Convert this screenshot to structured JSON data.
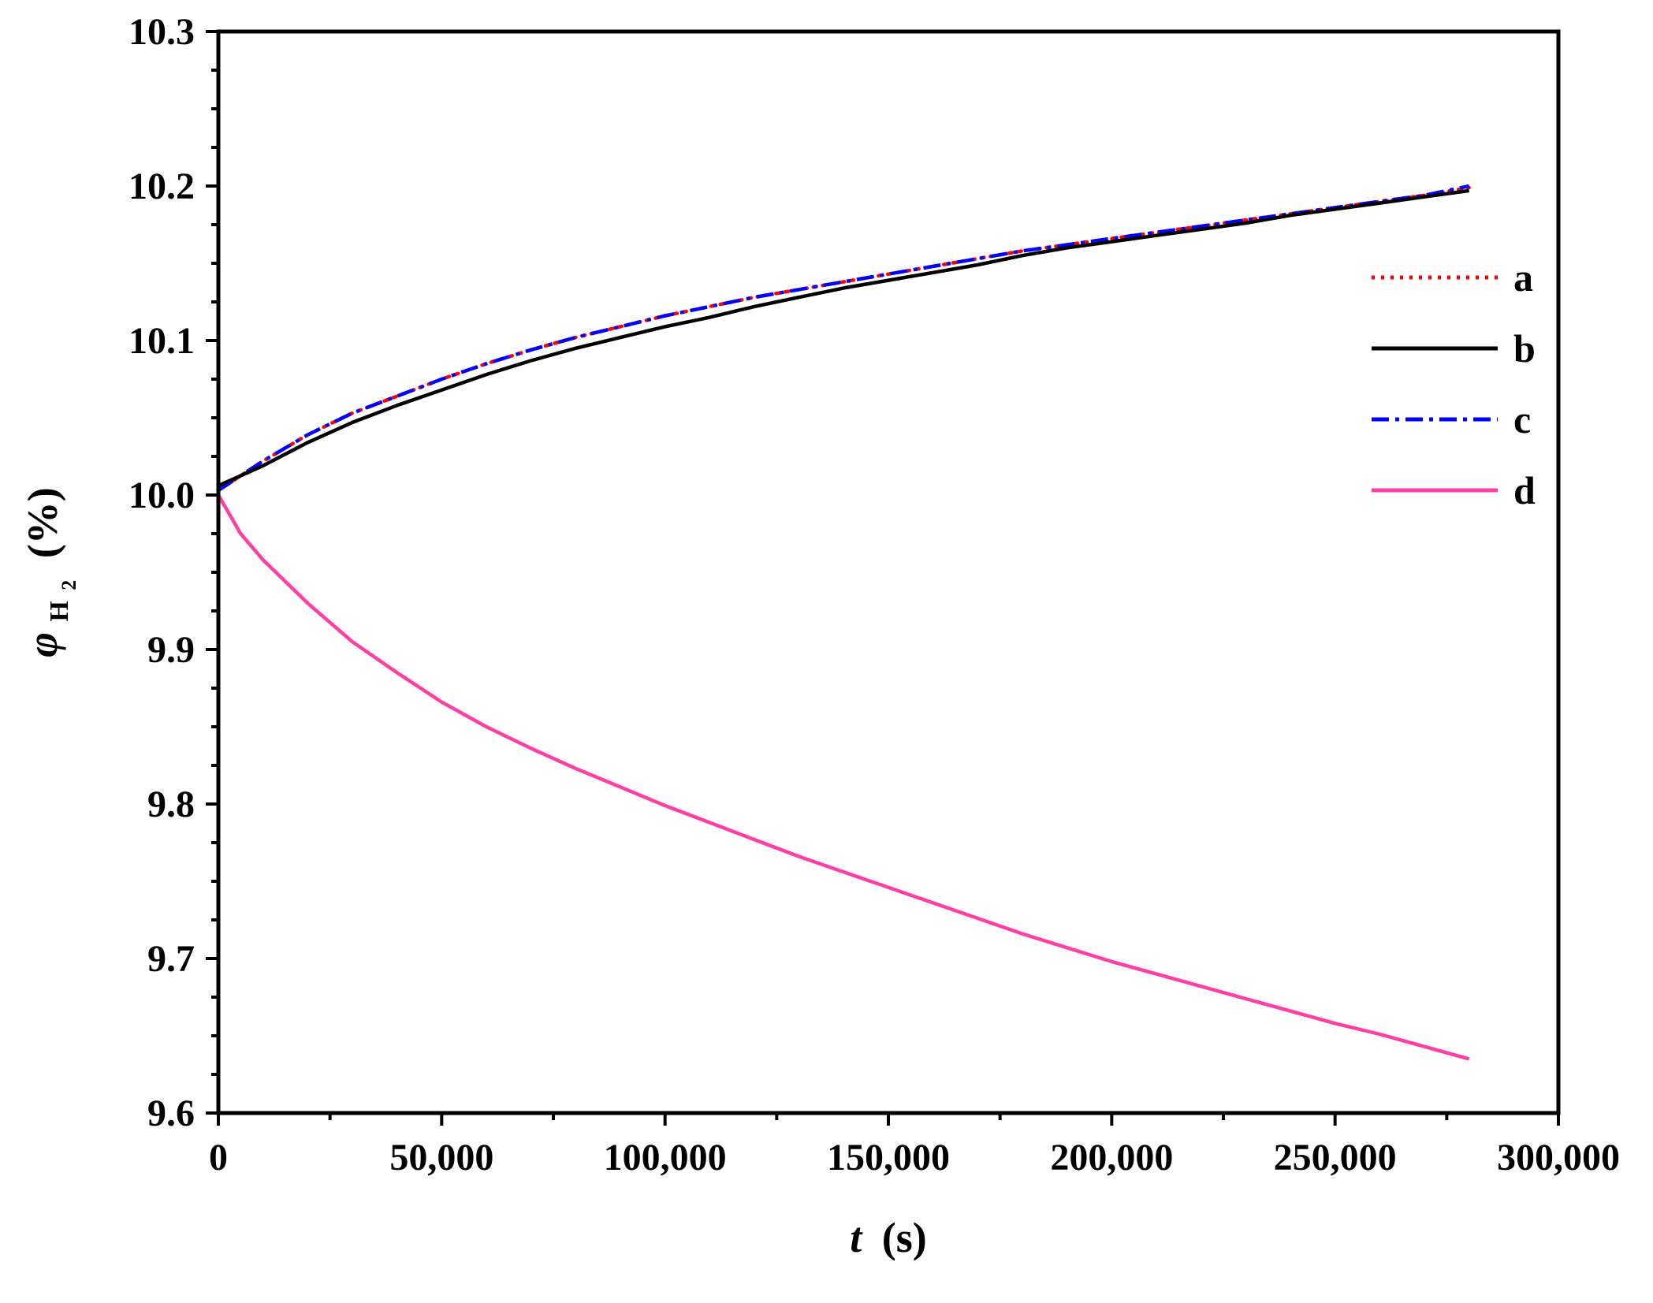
{
  "chart_data": {
    "type": "line",
    "xlabel": {
      "var": "t",
      "unit": "(s)"
    },
    "ylabel": {
      "var": "φ",
      "sub": "H",
      "subsub": "2",
      "unit": "(%)"
    },
    "xlim": [
      0,
      300000
    ],
    "ylim": [
      9.6,
      10.3
    ],
    "x_ticks": [
      0,
      50000,
      100000,
      150000,
      200000,
      250000,
      300000
    ],
    "x_tick_labels": [
      "0",
      "50,000",
      "100,000",
      "150,000",
      "200,000",
      "250,000",
      "300,000"
    ],
    "y_ticks": [
      9.6,
      9.7,
      9.8,
      9.9,
      10.0,
      10.1,
      10.2,
      10.3
    ],
    "y_tick_labels": [
      "9.6",
      "9.7",
      "9.8",
      "9.9",
      "10.0",
      "10.1",
      "10.2",
      "10.3"
    ],
    "grid": false,
    "legend_position": "right",
    "series": [
      {
        "name": "a",
        "color": "#ff0000",
        "style": "dotted",
        "x": [
          0,
          10000,
          20000,
          30000,
          40000,
          50000,
          60000,
          70000,
          80000,
          90000,
          100000,
          110000,
          120000,
          130000,
          140000,
          150000,
          160000,
          170000,
          180000,
          190000,
          200000,
          210000,
          220000,
          230000,
          240000,
          250000,
          260000,
          270000,
          280000
        ],
        "y": [
          10.003,
          10.022,
          10.039,
          10.053,
          10.064,
          10.075,
          10.085,
          10.094,
          10.102,
          10.109,
          10.116,
          10.122,
          10.128,
          10.133,
          10.138,
          10.143,
          10.148,
          10.153,
          10.158,
          10.162,
          10.166,
          10.17,
          10.174,
          10.178,
          10.182,
          10.186,
          10.19,
          10.194,
          10.199
        ]
      },
      {
        "name": "b",
        "color": "#000000",
        "style": "solid",
        "x": [
          0,
          10000,
          20000,
          30000,
          40000,
          50000,
          60000,
          70000,
          80000,
          90000,
          100000,
          110000,
          120000,
          130000,
          140000,
          150000,
          160000,
          170000,
          180000,
          190000,
          200000,
          210000,
          220000,
          230000,
          240000,
          250000,
          260000,
          270000,
          280000
        ],
        "y": [
          10.006,
          10.019,
          10.034,
          10.047,
          10.058,
          10.068,
          10.078,
          10.087,
          10.095,
          10.102,
          10.109,
          10.115,
          10.122,
          10.128,
          10.134,
          10.139,
          10.144,
          10.149,
          10.155,
          10.16,
          10.164,
          10.168,
          10.172,
          10.176,
          10.181,
          10.185,
          10.189,
          10.193,
          10.197
        ]
      },
      {
        "name": "c",
        "color": "#0000ff",
        "style": "dashdot",
        "x": [
          0,
          10000,
          20000,
          30000,
          40000,
          50000,
          60000,
          70000,
          80000,
          90000,
          100000,
          110000,
          120000,
          130000,
          140000,
          150000,
          160000,
          170000,
          180000,
          190000,
          200000,
          210000,
          220000,
          230000,
          240000,
          250000,
          260000,
          270000,
          280000
        ],
        "y": [
          10.003,
          10.022,
          10.039,
          10.053,
          10.064,
          10.075,
          10.085,
          10.094,
          10.102,
          10.109,
          10.116,
          10.122,
          10.128,
          10.133,
          10.138,
          10.143,
          10.148,
          10.153,
          10.158,
          10.162,
          10.166,
          10.17,
          10.174,
          10.178,
          10.182,
          10.186,
          10.19,
          10.194,
          10.2
        ]
      },
      {
        "name": "d",
        "color": "#ff3fa4",
        "style": "solid",
        "x": [
          0,
          5000,
          10000,
          20000,
          30000,
          40000,
          50000,
          60000,
          70000,
          80000,
          90000,
          100000,
          110000,
          120000,
          130000,
          140000,
          150000,
          160000,
          170000,
          180000,
          190000,
          200000,
          210000,
          220000,
          230000,
          240000,
          250000,
          260000,
          270000,
          280000
        ],
        "y": [
          10.0,
          9.975,
          9.958,
          9.93,
          9.905,
          9.885,
          9.866,
          9.85,
          9.836,
          9.823,
          9.811,
          9.799,
          9.788,
          9.777,
          9.766,
          9.756,
          9.746,
          9.736,
          9.726,
          9.716,
          9.707,
          9.698,
          9.69,
          9.682,
          9.674,
          9.666,
          9.658,
          9.651,
          9.643,
          9.635
        ]
      }
    ]
  }
}
